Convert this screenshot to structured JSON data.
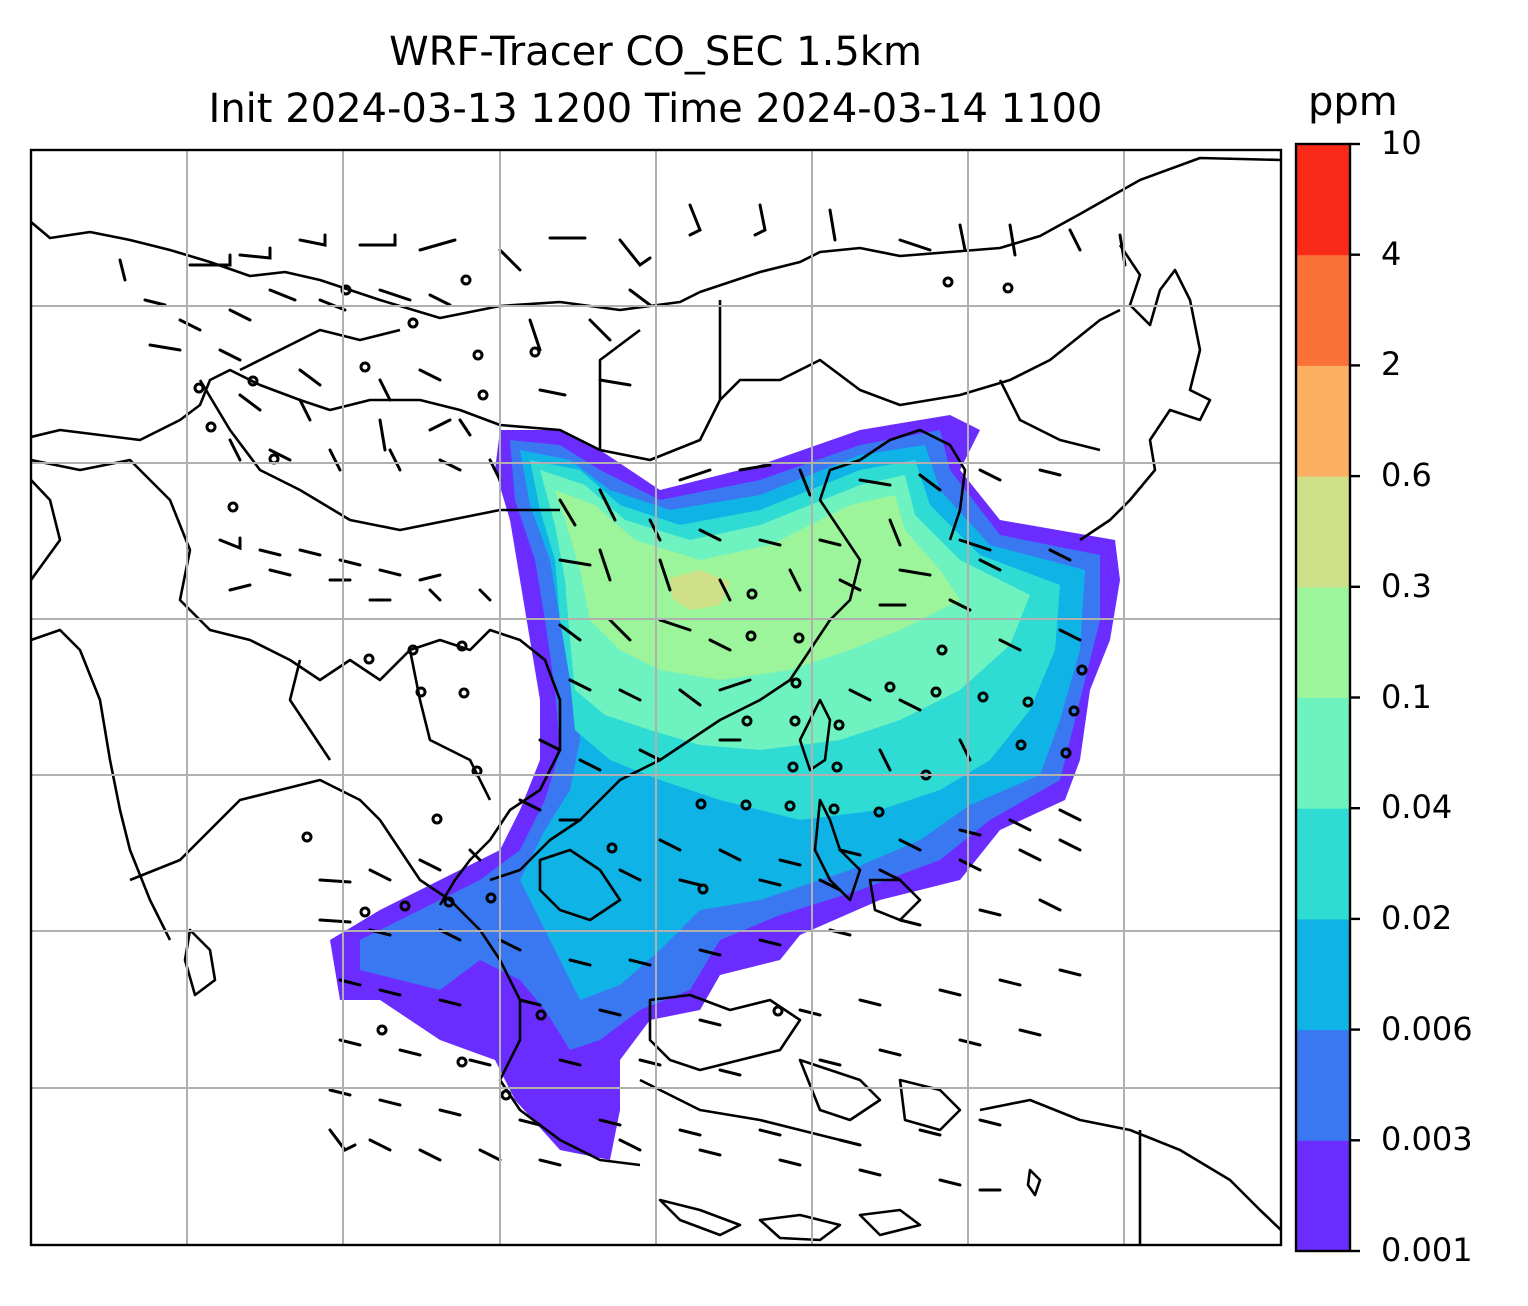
{
  "title_line1": "WRF-Tracer CO_SEC 1.5km",
  "title_line2": "Init 2024-03-13 1200 Time 2024-03-14 1100",
  "colorbar": {
    "unit": "ppm",
    "levels": [
      "0.001",
      "0.003",
      "0.006",
      "0.02",
      "0.04",
      "0.1",
      "0.3",
      "0.6",
      "2",
      "4",
      "10"
    ],
    "colors": [
      "#6a2cff",
      "#3a78f2",
      "#0fb3e6",
      "#2fdcd4",
      "#6ef2c0",
      "#9cf59a",
      "#cfe089",
      "#fdb061",
      "#fb7138",
      "#f92a18"
    ]
  },
  "map": {
    "gridlines": "on",
    "field_variable": "CO_SEC",
    "overlays": [
      "coastlines",
      "country borders",
      "wind barbs"
    ]
  }
}
